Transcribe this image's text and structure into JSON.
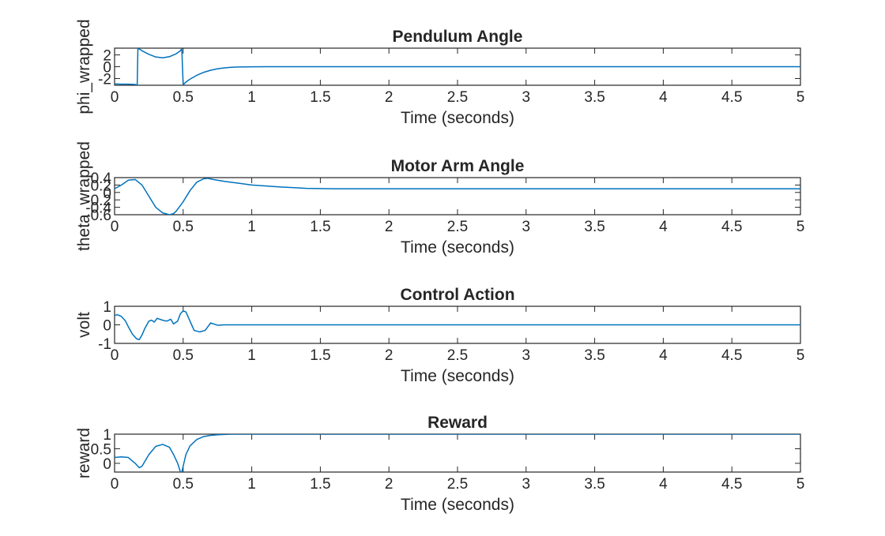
{
  "chart_data": [
    {
      "type": "line",
      "title": "Pendulum Angle",
      "xlabel": "Time (seconds)",
      "ylabel": "phi_wrapped",
      "xlim": [
        0,
        5
      ],
      "ylim": [
        -3.14,
        3.14
      ],
      "xticks": [
        0,
        0.5,
        1,
        1.5,
        2,
        2.5,
        3,
        3.5,
        4,
        4.5,
        5
      ],
      "xticklabels": [
        "0",
        "0.5",
        "1",
        "1.5",
        "2",
        "2.5",
        "3",
        "3.5",
        "4",
        "4.5",
        "5"
      ],
      "yticks": [
        -2,
        0,
        2
      ],
      "yticklabels": [
        "-2",
        "0",
        "2"
      ],
      "grid": false,
      "color": "#0072bd",
      "x": [
        0,
        0.05,
        0.1,
        0.15,
        0.165,
        0.17,
        0.18,
        0.2,
        0.25,
        0.3,
        0.35,
        0.4,
        0.45,
        0.48,
        0.49,
        0.5,
        0.52,
        0.55,
        0.6,
        0.65,
        0.7,
        0.75,
        0.8,
        0.85,
        0.9,
        1.0,
        1.1,
        1.5,
        2,
        3,
        4,
        5
      ],
      "y": [
        -2.9,
        -2.95,
        -2.95,
        -3.0,
        -3.1,
        3.1,
        3.0,
        2.7,
        2.1,
        1.65,
        1.5,
        1.7,
        2.2,
        2.7,
        3.05,
        -3.05,
        -2.6,
        -2.1,
        -1.45,
        -0.95,
        -0.6,
        -0.35,
        -0.2,
        -0.1,
        -0.05,
        -0.02,
        0,
        0,
        0,
        0,
        0,
        0
      ]
    },
    {
      "type": "line",
      "title": "Motor Arm Angle",
      "xlabel": "Time (seconds)",
      "ylabel": "theta_wrapped",
      "xlim": [
        0,
        5
      ],
      "ylim": [
        -0.6,
        0.4
      ],
      "xticks": [
        0,
        0.5,
        1,
        1.5,
        2,
        2.5,
        3,
        3.5,
        4,
        4.5,
        5
      ],
      "xticklabels": [
        "0",
        "0.5",
        "1",
        "1.5",
        "2",
        "2.5",
        "3",
        "3.5",
        "4",
        "4.5",
        "5"
      ],
      "yticks": [
        -0.6,
        -0.4,
        -0.2,
        0,
        0.2,
        0.4
      ],
      "yticklabels": [
        "-0.6",
        "-0.4",
        "-0.2",
        "0",
        "0.2",
        "0.4"
      ],
      "grid": false,
      "color": "#0072bd",
      "x": [
        0,
        0.05,
        0.1,
        0.15,
        0.2,
        0.25,
        0.3,
        0.35,
        0.4,
        0.43,
        0.45,
        0.5,
        0.55,
        0.6,
        0.65,
        0.68,
        0.72,
        0.8,
        0.9,
        1.0,
        1.2,
        1.4,
        1.6,
        2,
        3,
        4,
        5
      ],
      "y": [
        0.1,
        0.2,
        0.33,
        0.35,
        0.2,
        -0.1,
        -0.4,
        -0.55,
        -0.6,
        -0.57,
        -0.5,
        -0.25,
        0.05,
        0.28,
        0.37,
        0.38,
        0.35,
        0.3,
        0.25,
        0.2,
        0.15,
        0.11,
        0.1,
        0.1,
        0.1,
        0.1,
        0.1
      ]
    },
    {
      "type": "line",
      "title": "Control Action",
      "xlabel": "Time (seconds)",
      "ylabel": "volt",
      "xlim": [
        0,
        5
      ],
      "ylim": [
        -1,
        1
      ],
      "xticks": [
        0,
        0.5,
        1,
        1.5,
        2,
        2.5,
        3,
        3.5,
        4,
        4.5,
        5
      ],
      "xticklabels": [
        "0",
        "0.5",
        "1",
        "1.5",
        "2",
        "2.5",
        "3",
        "3.5",
        "4",
        "4.5",
        "5"
      ],
      "yticks": [
        -1,
        0,
        1
      ],
      "yticklabels": [
        "-1",
        "0",
        "1"
      ],
      "grid": false,
      "color": "#0072bd",
      "x": [
        0,
        0.02,
        0.05,
        0.08,
        0.1,
        0.13,
        0.16,
        0.18,
        0.2,
        0.22,
        0.25,
        0.27,
        0.29,
        0.31,
        0.33,
        0.35,
        0.38,
        0.41,
        0.43,
        0.46,
        0.48,
        0.5,
        0.52,
        0.55,
        0.58,
        0.62,
        0.66,
        0.7,
        0.75,
        0.8,
        1.0,
        2,
        3,
        4,
        5
      ],
      "y": [
        0.5,
        0.55,
        0.45,
        0.2,
        -0.1,
        -0.5,
        -0.75,
        -0.8,
        -0.55,
        -0.2,
        0.2,
        0.25,
        0.15,
        0.35,
        0.3,
        0.25,
        0.2,
        0.3,
        0.05,
        0.2,
        0.6,
        0.75,
        0.7,
        0.2,
        -0.3,
        -0.38,
        -0.3,
        0.1,
        -0.02,
        0,
        0,
        0,
        0,
        0,
        0
      ]
    },
    {
      "type": "line",
      "title": "Reward",
      "xlabel": "Time (seconds)",
      "ylabel": "reward",
      "xlim": [
        0,
        5
      ],
      "ylim": [
        -0.3,
        1
      ],
      "xticks": [
        0,
        0.5,
        1,
        1.5,
        2,
        2.5,
        3,
        3.5,
        4,
        4.5,
        5
      ],
      "xticklabels": [
        "0",
        "0.5",
        "1",
        "1.5",
        "2",
        "2.5",
        "3",
        "3.5",
        "4",
        "4.5",
        "5"
      ],
      "yticks": [
        0,
        0.5,
        1
      ],
      "yticklabels": [
        "0",
        "0.5",
        "1"
      ],
      "grid": false,
      "color": "#0072bd",
      "x": [
        0,
        0.05,
        0.1,
        0.15,
        0.18,
        0.2,
        0.25,
        0.3,
        0.35,
        0.4,
        0.43,
        0.46,
        0.48,
        0.49,
        0.5,
        0.52,
        0.55,
        0.6,
        0.65,
        0.7,
        0.75,
        0.8,
        0.85,
        0.9,
        1.0,
        2,
        3,
        4,
        5
      ],
      "y": [
        0.2,
        0.22,
        0.2,
        0.0,
        -0.15,
        -0.1,
        0.3,
        0.58,
        0.65,
        0.55,
        0.3,
        0.0,
        -0.3,
        -0.3,
        -0.1,
        0.3,
        0.6,
        0.82,
        0.92,
        0.96,
        0.98,
        0.99,
        1.0,
        1.0,
        1.0,
        1.0,
        1.0,
        1.0,
        1.0
      ]
    }
  ]
}
